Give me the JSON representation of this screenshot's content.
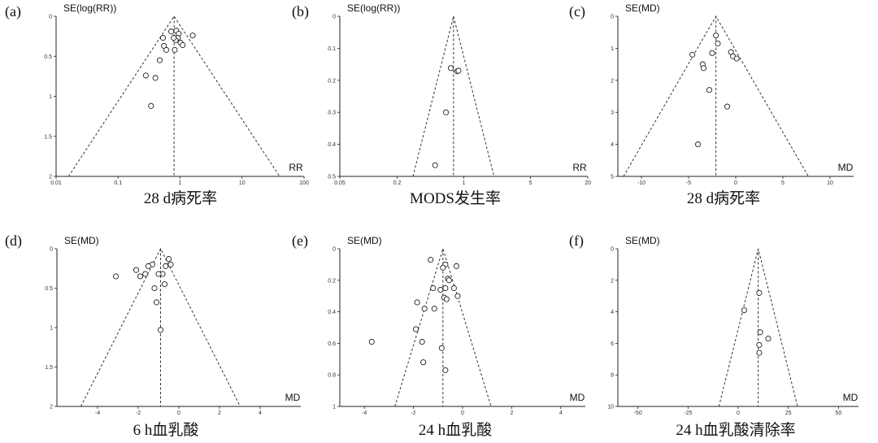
{
  "chart_data": [
    {
      "type": "scatter",
      "panel": "(a)",
      "ylabel": "SE(log(RR))",
      "xlabel": "RR",
      "caption": "28 d病死率",
      "x_scale": "log",
      "xlim": [
        0.01,
        100
      ],
      "ylim": [
        0,
        2
      ],
      "y_reversed": true,
      "x_ticks": [
        0.01,
        0.1,
        1,
        10,
        100
      ],
      "x_tick_labels": [
        "0.01",
        "0.1",
        "1",
        "10",
        "100"
      ],
      "y_ticks": [
        0,
        0.5,
        1,
        1.5,
        2
      ],
      "y_tick_labels": [
        "0",
        "0.5",
        "1",
        "1.5",
        "2"
      ],
      "pooled": 0.8,
      "points": [
        {
          "x": 0.72,
          "y": 0.19
        },
        {
          "x": 0.87,
          "y": 0.18
        },
        {
          "x": 0.95,
          "y": 0.22
        },
        {
          "x": 0.92,
          "y": 0.27
        },
        {
          "x": 1.02,
          "y": 0.33
        },
        {
          "x": 0.85,
          "y": 0.3
        },
        {
          "x": 0.79,
          "y": 0.27
        },
        {
          "x": 0.53,
          "y": 0.27
        },
        {
          "x": 0.55,
          "y": 0.37
        },
        {
          "x": 0.6,
          "y": 0.42
        },
        {
          "x": 0.82,
          "y": 0.42
        },
        {
          "x": 1.1,
          "y": 0.36
        },
        {
          "x": 1.6,
          "y": 0.24
        },
        {
          "x": 0.47,
          "y": 0.55
        },
        {
          "x": 0.28,
          "y": 0.74
        },
        {
          "x": 0.4,
          "y": 0.77
        },
        {
          "x": 0.34,
          "y": 1.12
        }
      ]
    },
    {
      "type": "scatter",
      "panel": "(b)",
      "ylabel": "SE(log(RR))",
      "xlabel": "RR",
      "caption": "MODS发生率",
      "x_scale": "log",
      "xlim": [
        0.05,
        20
      ],
      "ylim": [
        0,
        0.5
      ],
      "y_reversed": true,
      "x_ticks": [
        0.05,
        0.2,
        1,
        5,
        20
      ],
      "x_tick_labels": [
        "0.05",
        "0.2",
        "1",
        "5",
        "20"
      ],
      "y_ticks": [
        0,
        0.1,
        0.2,
        0.3,
        0.4,
        0.5
      ],
      "y_tick_labels": [
        "0",
        "0.1",
        "0.2",
        "0.3",
        "0.4",
        "0.5"
      ],
      "pooled": 0.78,
      "points": [
        {
          "x": 0.73,
          "y": 0.162
        },
        {
          "x": 0.85,
          "y": 0.172
        },
        {
          "x": 0.88,
          "y": 0.17
        },
        {
          "x": 0.65,
          "y": 0.3
        },
        {
          "x": 0.5,
          "y": 0.465
        }
      ]
    },
    {
      "type": "scatter",
      "panel": "(c)",
      "ylabel": "SE(MD)",
      "xlabel": "MD",
      "caption": "28 d病死率",
      "x_scale": "linear",
      "xlim": [
        -12.5,
        12.5
      ],
      "ylim": [
        0,
        5
      ],
      "y_reversed": true,
      "x_ticks": [
        -10,
        -5,
        0,
        5,
        10
      ],
      "x_tick_labels": [
        "-10",
        "-5",
        "0",
        "5",
        "10"
      ],
      "y_ticks": [
        0,
        1,
        2,
        3,
        4,
        5
      ],
      "y_tick_labels": [
        "0",
        "1",
        "2",
        "3",
        "4",
        "5"
      ],
      "pooled": -2.1,
      "points": [
        {
          "x": -2.1,
          "y": 0.6
        },
        {
          "x": -1.9,
          "y": 0.85
        },
        {
          "x": -2.5,
          "y": 1.15
        },
        {
          "x": -0.5,
          "y": 1.12
        },
        {
          "x": -0.3,
          "y": 1.25
        },
        {
          "x": 0.1,
          "y": 1.32
        },
        {
          "x": -4.6,
          "y": 1.2
        },
        {
          "x": -3.5,
          "y": 1.5
        },
        {
          "x": -3.4,
          "y": 1.62
        },
        {
          "x": -2.8,
          "y": 2.3
        },
        {
          "x": -0.9,
          "y": 2.82
        },
        {
          "x": -4.0,
          "y": 4.0
        }
      ]
    },
    {
      "type": "scatter",
      "panel": "(d)",
      "ylabel": "SE(MD)",
      "xlabel": "MD",
      "caption": "6 h血乳酸",
      "x_scale": "linear",
      "xlim": [
        -6,
        6
      ],
      "ylim": [
        0,
        2
      ],
      "y_reversed": true,
      "x_ticks": [
        -4,
        -2,
        0,
        2,
        4
      ],
      "x_tick_labels": [
        "-4",
        "-2",
        "0",
        "2",
        "4"
      ],
      "y_ticks": [
        0,
        0.5,
        1,
        1.5,
        2
      ],
      "y_tick_labels": [
        "0",
        "0.5",
        "1",
        "1.5",
        "2"
      ],
      "pooled": -0.9,
      "points": [
        {
          "x": -0.5,
          "y": 0.13
        },
        {
          "x": -0.4,
          "y": 0.2
        },
        {
          "x": -0.65,
          "y": 0.22
        },
        {
          "x": -1.3,
          "y": 0.2
        },
        {
          "x": -1.5,
          "y": 0.22
        },
        {
          "x": -2.1,
          "y": 0.27
        },
        {
          "x": -1.65,
          "y": 0.32
        },
        {
          "x": -1.9,
          "y": 0.35
        },
        {
          "x": -0.8,
          "y": 0.32
        },
        {
          "x": -1.0,
          "y": 0.32
        },
        {
          "x": -3.1,
          "y": 0.35
        },
        {
          "x": -0.7,
          "y": 0.45
        },
        {
          "x": -1.2,
          "y": 0.5
        },
        {
          "x": -1.1,
          "y": 0.68
        },
        {
          "x": -0.9,
          "y": 1.03
        }
      ]
    },
    {
      "type": "scatter",
      "panel": "(e)",
      "ylabel": "SE(MD)",
      "xlabel": "MD",
      "caption": "24 h血乳酸",
      "x_scale": "linear",
      "xlim": [
        -5,
        5
      ],
      "ylim": [
        0,
        1
      ],
      "y_reversed": true,
      "x_ticks": [
        -4,
        -2,
        0,
        2,
        4
      ],
      "x_tick_labels": [
        "-4",
        "-2",
        "0",
        "2",
        "4"
      ],
      "y_ticks": [
        0,
        0.2,
        0.4,
        0.6,
        0.8,
        1
      ],
      "y_tick_labels": [
        "0",
        "0.2",
        "0.4",
        "0.6",
        "0.8",
        "1"
      ],
      "pooled": -0.8,
      "points": [
        {
          "x": -1.3,
          "y": 0.07
        },
        {
          "x": -0.7,
          "y": 0.1
        },
        {
          "x": -0.8,
          "y": 0.12
        },
        {
          "x": -0.25,
          "y": 0.11
        },
        {
          "x": -0.6,
          "y": 0.19
        },
        {
          "x": -0.55,
          "y": 0.2
        },
        {
          "x": -1.2,
          "y": 0.25
        },
        {
          "x": -0.9,
          "y": 0.26
        },
        {
          "x": -0.7,
          "y": 0.25
        },
        {
          "x": -0.35,
          "y": 0.25
        },
        {
          "x": -0.2,
          "y": 0.3
        },
        {
          "x": -0.75,
          "y": 0.31
        },
        {
          "x": -0.65,
          "y": 0.32
        },
        {
          "x": -1.85,
          "y": 0.34
        },
        {
          "x": -1.55,
          "y": 0.38
        },
        {
          "x": -1.15,
          "y": 0.38
        },
        {
          "x": -1.9,
          "y": 0.51
        },
        {
          "x": -3.7,
          "y": 0.59
        },
        {
          "x": -1.65,
          "y": 0.59
        },
        {
          "x": -0.85,
          "y": 0.63
        },
        {
          "x": -1.6,
          "y": 0.72
        },
        {
          "x": -0.7,
          "y": 0.77
        }
      ]
    },
    {
      "type": "scatter",
      "panel": "(f)",
      "ylabel": "SE(MD)",
      "xlabel": "MD",
      "caption": "24 h血乳酸清除率",
      "x_scale": "linear",
      "xlim": [
        -60,
        60
      ],
      "ylim": [
        0,
        10
      ],
      "y_reversed": true,
      "x_ticks": [
        -50,
        -25,
        0,
        25,
        50
      ],
      "x_tick_labels": [
        "-50",
        "-25",
        "0",
        "25",
        "50"
      ],
      "y_ticks": [
        0,
        2,
        4,
        6,
        8,
        10
      ],
      "y_tick_labels": [
        "0",
        "2",
        "4",
        "6",
        "8",
        "10"
      ],
      "pooled": 10,
      "points": [
        {
          "x": 10.5,
          "y": 2.8
        },
        {
          "x": 3,
          "y": 3.9
        },
        {
          "x": 11,
          "y": 5.3
        },
        {
          "x": 15,
          "y": 5.7
        },
        {
          "x": 10.5,
          "y": 6.1
        },
        {
          "x": 10.5,
          "y": 6.6
        }
      ]
    }
  ]
}
